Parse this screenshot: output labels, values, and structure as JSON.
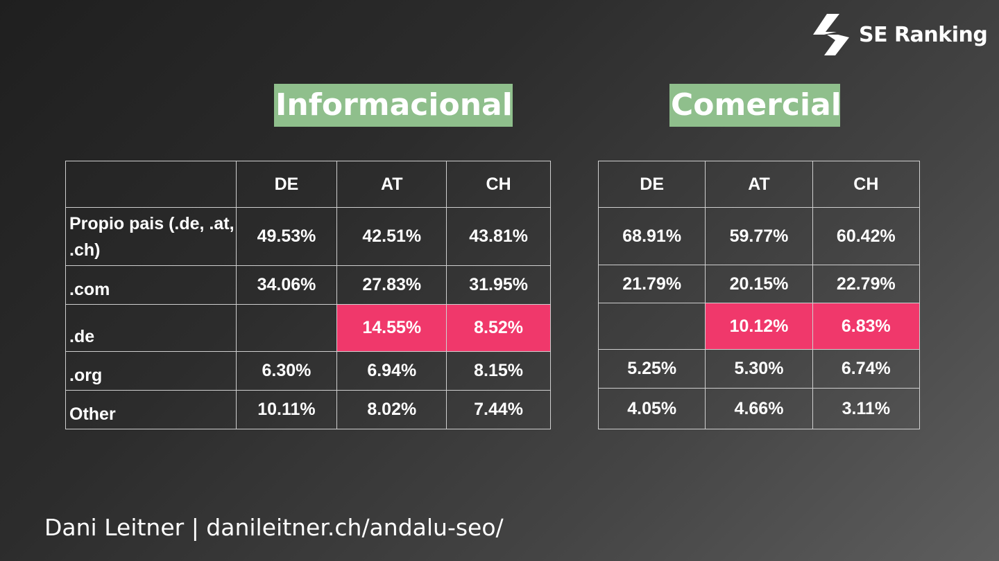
{
  "brand": {
    "name": "SE Ranking",
    "icon": "se-ranking-bolt-icon"
  },
  "headings": {
    "informacional": "Informacional",
    "comercial": "Comercial"
  },
  "informacional_table": {
    "columns": [
      "DE",
      "AT",
      "CH"
    ],
    "rows": [
      {
        "label": "Propio pais (.de, .at, .ch)",
        "values": [
          "49.53%",
          "42.51%",
          "43.81%"
        ]
      },
      {
        "label": ".com",
        "values": [
          "34.06%",
          "27.83%",
          "31.95%"
        ]
      },
      {
        "label": ".de",
        "values": [
          "",
          "14.55%",
          "8.52%"
        ]
      },
      {
        "label": ".org",
        "values": [
          "6.30%",
          "6.94%",
          "8.15%"
        ]
      },
      {
        "label": "Other",
        "values": [
          "10.11%",
          "8.02%",
          "7.44%"
        ]
      }
    ]
  },
  "comercial_table": {
    "columns": [
      "DE",
      "AT",
      "CH"
    ],
    "rows": [
      {
        "values": [
          "68.91%",
          "59.77%",
          "60.42%"
        ]
      },
      {
        "values": [
          "21.79%",
          "20.15%",
          "22.79%"
        ]
      },
      {
        "values": [
          "",
          "10.12%",
          "6.83%"
        ]
      },
      {
        "values": [
          "5.25%",
          "5.30%",
          "6.74%"
        ]
      },
      {
        "values": [
          "4.05%",
          "4.66%",
          "3.11%"
        ]
      }
    ]
  },
  "highlight_color": "#f0386b",
  "heading_bg_color": "#8fbf8c",
  "footer": "Dani Leitner | danileitner.ch/andalu-seo/"
}
